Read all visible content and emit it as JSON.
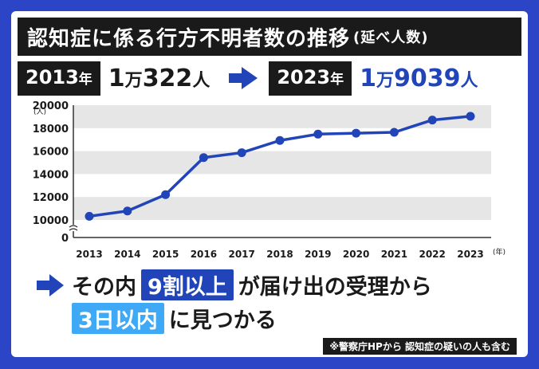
{
  "title": "認知症に係る行方不明者数の推移",
  "title_sub": "(延べ人数)",
  "summary": {
    "start_year": "2013",
    "start_year_unit": "年",
    "start_count_big": "1",
    "start_count_man": "万",
    "start_count_rest": "322",
    "start_count_unit": "人",
    "end_year": "2023",
    "end_year_unit": "年",
    "end_count_big": "1",
    "end_count_man": "万",
    "end_count_rest": "9039",
    "end_count_unit": "人"
  },
  "callout": {
    "line1_pre": "その内",
    "line1_highlight": "9割以上",
    "line1_post": "が届け出の受理から",
    "line2_highlight": "3日以内",
    "line2_post": "に見つかる"
  },
  "note": "※警察庁HPから 認知症の疑いの人も含む",
  "colors": {
    "line": "#2145b8",
    "band": "#e6e6e6",
    "accent_dark": "#2145b8",
    "accent_light": "#3fa9f5"
  },
  "chart_data": {
    "type": "line",
    "title": "認知症に係る行方不明者数の推移",
    "xlabel": "",
    "ylabel": "",
    "y_unit_label": "(人)",
    "x_unit_label": "(年)",
    "ylim": [
      10000,
      20000
    ],
    "y_ticks": [
      0,
      10000,
      12000,
      14000,
      16000,
      18000,
      20000
    ],
    "axis_break": true,
    "grid": "horizontal-bands",
    "x": [
      "2013",
      "2014",
      "2015",
      "2016",
      "2017",
      "2018",
      "2019",
      "2020",
      "2021",
      "2022",
      "2023"
    ],
    "series": [
      {
        "values": [
          10322,
          10783,
          12208,
          15432,
          15863,
          16927,
          17479,
          17565,
          17636,
          18709,
          19039
        ]
      }
    ]
  }
}
